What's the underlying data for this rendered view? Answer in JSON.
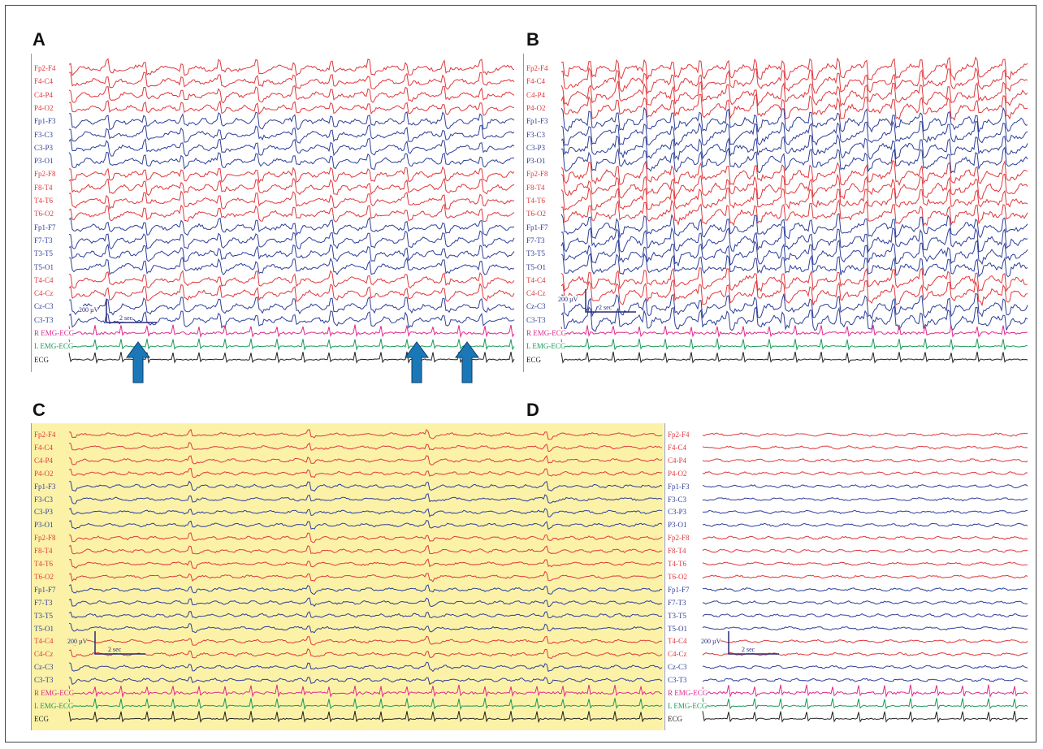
{
  "panels": [
    {
      "id": "A",
      "label": "A",
      "background": "#ffffff",
      "cal_amplitude": "200 µV",
      "cal_time": "2 sec"
    },
    {
      "id": "B",
      "label": "B",
      "background": "#ffffff",
      "cal_amplitude": "200 µV",
      "cal_time": "2 sec"
    },
    {
      "id": "C",
      "label": "C",
      "background": "#fbf2a8",
      "cal_amplitude": "200 µV",
      "cal_time": "2 sec"
    },
    {
      "id": "D",
      "label": "D",
      "background": "#ffffff",
      "cal_amplitude": "200 µV",
      "cal_time": "2 sec"
    }
  ],
  "channels": [
    {
      "label": "Fp2-F4",
      "color": "#e0383c"
    },
    {
      "label": "F4-C4",
      "color": "#e0383c"
    },
    {
      "label": "C4-P4",
      "color": "#e0383c"
    },
    {
      "label": "P4-O2",
      "color": "#e0383c"
    },
    {
      "label": "Fp1-F3",
      "color": "#2e3f9a"
    },
    {
      "label": "F3-C3",
      "color": "#2e3f9a"
    },
    {
      "label": "C3-P3",
      "color": "#2e3f9a"
    },
    {
      "label": "P3-O1",
      "color": "#2e3f9a"
    },
    {
      "label": "Fp2-F8",
      "color": "#e0383c"
    },
    {
      "label": "F8-T4",
      "color": "#e0383c"
    },
    {
      "label": "T4-T6",
      "color": "#e0383c"
    },
    {
      "label": "T6-O2",
      "color": "#e0383c"
    },
    {
      "label": "Fp1-F7",
      "color": "#2e3f9a"
    },
    {
      "label": "F7-T3",
      "color": "#2e3f9a"
    },
    {
      "label": "T3-T5",
      "color": "#2e3f9a"
    },
    {
      "label": "T5-O1",
      "color": "#2e3f9a"
    },
    {
      "label": "T4-C4",
      "color": "#e0383c"
    },
    {
      "label": "C4-Cz",
      "color": "#e0383c"
    },
    {
      "label": "Cz-C3",
      "color": "#2e3f9a"
    },
    {
      "label": "C3-T3",
      "color": "#2e3f9a"
    },
    {
      "label": "R EMG-ECG",
      "color": "#e0288c"
    },
    {
      "label": "L EMG-ECG",
      "color": "#1a9a58"
    },
    {
      "label": "ECG",
      "color": "#222222"
    }
  ],
  "arrow_color": "#1b78b8"
}
